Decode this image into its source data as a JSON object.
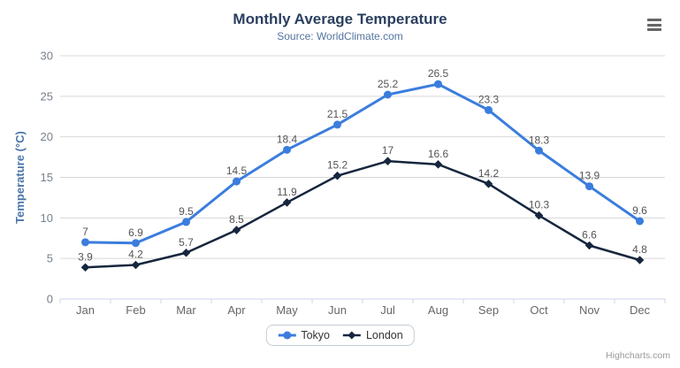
{
  "chart": {
    "credits": "Highcharts.com",
    "menu_icon": "hamburger-menu-icon"
  },
  "chart_data": {
    "type": "line",
    "title": "Monthly Average Temperature",
    "subtitle": "Source: WorldClimate.com",
    "categories": [
      "Jan",
      "Feb",
      "Mar",
      "Apr",
      "May",
      "Jun",
      "Jul",
      "Aug",
      "Sep",
      "Oct",
      "Nov",
      "Dec"
    ],
    "series": [
      {
        "name": "Tokyo",
        "color": "#3b7ddd",
        "marker": "circle",
        "line_width": 3,
        "values": [
          7,
          6.9,
          9.5,
          14.5,
          18.4,
          21.5,
          25.2,
          26.5,
          23.3,
          18.3,
          13.9,
          9.6
        ]
      },
      {
        "name": "London",
        "color": "#16263e",
        "marker": "diamond",
        "line_width": 2.5,
        "values": [
          3.9,
          4.2,
          5.7,
          8.5,
          11.9,
          15.2,
          17,
          16.6,
          14.2,
          10.3,
          6.6,
          4.8
        ]
      }
    ],
    "xlabel": "",
    "ylabel": "Temperature (°C)",
    "ylim": [
      0,
      30
    ],
    "ytick_step": 5,
    "grid": true,
    "data_labels": true,
    "legend_position": "bottom"
  },
  "colors": {
    "title": "#2a3f5f",
    "subtitle": "#53749f",
    "axis_title": "#4a74a8",
    "y_tick_label": "#76808c",
    "x_tick_label": "#666666",
    "data_label": "#555555",
    "gridline": "#d8d8d8",
    "axis_line": "#ccd6eb",
    "legend_border": "#c3ccd4",
    "legend_text": "#333333",
    "credits": "#999999",
    "menu": "#666666"
  }
}
